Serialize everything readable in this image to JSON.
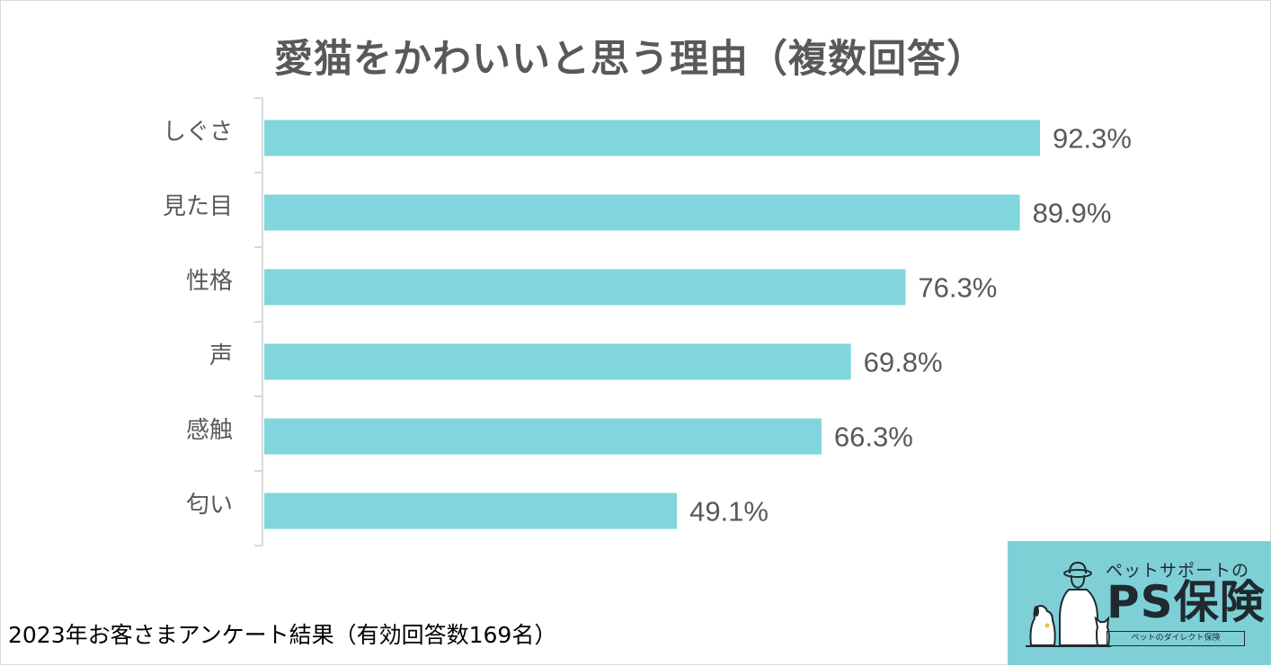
{
  "title": "愛猫をかわいいと思う理由（複数回答）",
  "footnote": "2023年お客さまアンケート結果（有効回答数169名）",
  "logo": {
    "tagline": "ペットサポートの",
    "name": "PS保険",
    "subline": "ペットのダイレクト保険"
  },
  "colors": {
    "bar": "#80d6dc",
    "text": "#595959",
    "axis": "#d9d9d9",
    "logo_bg": "#7fd0d6"
  },
  "chart_data": {
    "type": "bar",
    "orientation": "horizontal",
    "title": "愛猫をかわいいと思う理由（複数回答）",
    "categories": [
      "しぐさ",
      "見た目",
      "性格",
      "声",
      "感触",
      "匂い"
    ],
    "values": [
      92.3,
      89.9,
      76.3,
      69.8,
      66.3,
      49.1
    ],
    "value_labels": [
      "92.3%",
      "89.9%",
      "76.3%",
      "69.8%",
      "66.3%",
      "49.1%"
    ],
    "unit": "%",
    "xlim": [
      0,
      100
    ],
    "grid": false,
    "legend": "none"
  }
}
